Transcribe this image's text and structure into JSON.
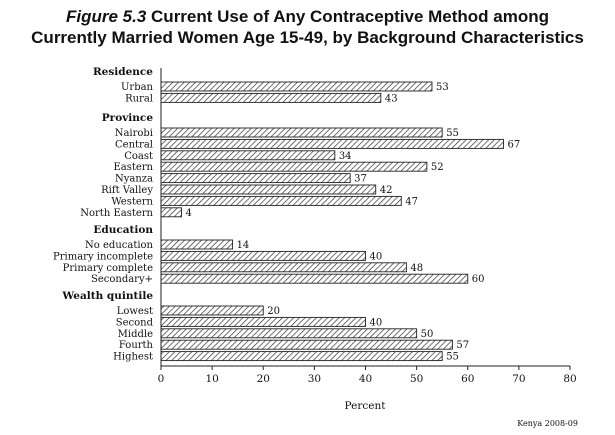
{
  "title": {
    "figure_label": "Figure 5.3",
    "line1_rest": "Current Use of Any Contraceptive Method among",
    "line2": "Currently Married Women Age 15-49, by Background Characteristics"
  },
  "source": "Kenya 2008-09",
  "chart_data": {
    "type": "bar",
    "orientation": "horizontal",
    "xlabel": "Percent",
    "xlim": [
      0,
      80
    ],
    "xticks": [
      0,
      10,
      20,
      30,
      40,
      50,
      60,
      70,
      80
    ],
    "grid": false,
    "groups": [
      {
        "label": "Residence",
        "items": [
          {
            "label": "Urban",
            "value": 53
          },
          {
            "label": "Rural",
            "value": 43
          }
        ]
      },
      {
        "label": "Province",
        "items": [
          {
            "label": "Nairobi",
            "value": 55
          },
          {
            "label": "Central",
            "value": 67
          },
          {
            "label": "Coast",
            "value": 34
          },
          {
            "label": "Eastern",
            "value": 52
          },
          {
            "label": "Nyanza",
            "value": 37
          },
          {
            "label": "Rift Valley",
            "value": 42
          },
          {
            "label": "Western",
            "value": 47
          },
          {
            "label": "North Eastern",
            "value": 4
          }
        ]
      },
      {
        "label": "Education",
        "items": [
          {
            "label": "No education",
            "value": 14
          },
          {
            "label": "Primary incomplete",
            "value": 40
          },
          {
            "label": "Primary complete",
            "value": 48
          },
          {
            "label": "Secondary+",
            "value": 60
          }
        ]
      },
      {
        "label": "Wealth quintile",
        "items": [
          {
            "label": "Lowest",
            "value": 20
          },
          {
            "label": "Second",
            "value": 40
          },
          {
            "label": "Middle",
            "value": 50
          },
          {
            "label": "Fourth",
            "value": 57
          },
          {
            "label": "Highest",
            "value": 55
          }
        ]
      }
    ]
  }
}
